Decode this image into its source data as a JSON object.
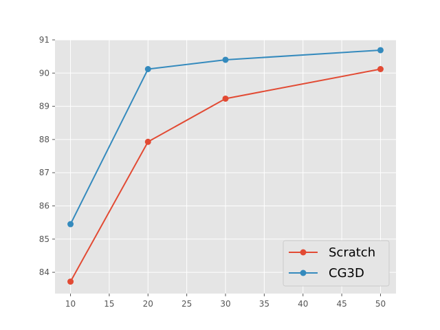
{
  "chart_data": {
    "type": "line",
    "title": "",
    "xlabel": "",
    "ylabel": "",
    "x": [
      10,
      20,
      30,
      50
    ],
    "xlim": [
      8.0,
      52.0
    ],
    "ylim": [
      83.36,
      91.0
    ],
    "xticks": [
      10,
      15,
      20,
      25,
      30,
      35,
      40,
      45,
      50
    ],
    "yticks": [
      84,
      85,
      86,
      87,
      88,
      89,
      90,
      91
    ],
    "grid": true,
    "legend_position": "lower-right",
    "series": [
      {
        "name": "Scratch",
        "color": "#E24A33",
        "values": [
          83.72,
          87.93,
          89.23,
          90.12
        ]
      },
      {
        "name": "CG3D",
        "color": "#348ABD",
        "values": [
          85.45,
          90.12,
          90.4,
          90.69
        ]
      }
    ]
  }
}
